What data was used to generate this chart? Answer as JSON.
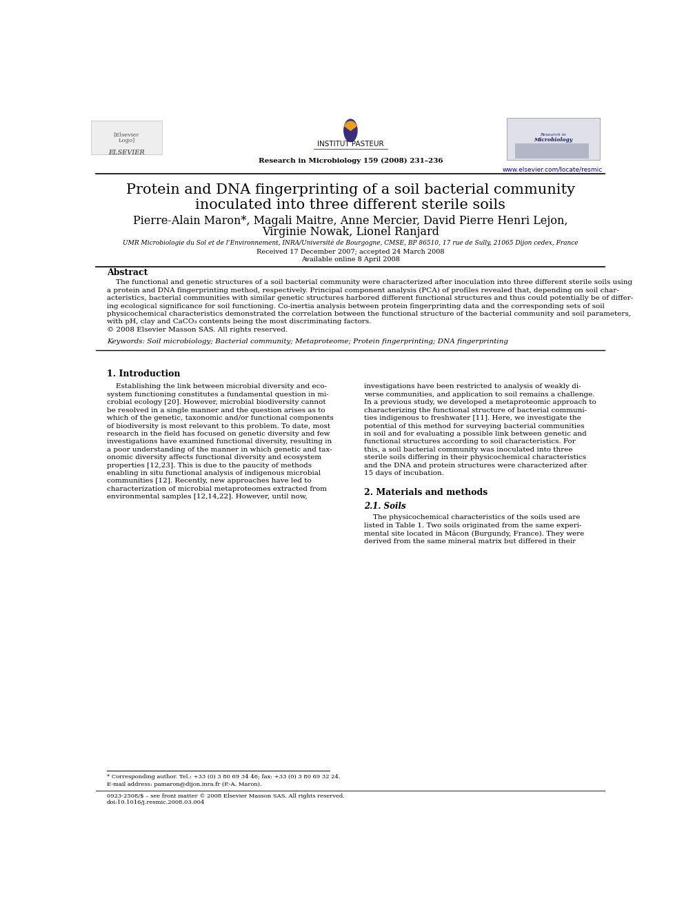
{
  "title_line1": "Protein and DNA fingerprinting of a soil bacterial community",
  "title_line2": "inoculated into three different sterile soils",
  "authors_line1": "Pierre-Alain Maron*, Magali Maitre, Anne Mercier, David Pierre Henri Lejon,",
  "authors_line2": "Virginie Nowak, Lionel Ranjard",
  "affiliation": "UMR Microbiologie du Sol et de l’Environnement, INRA/Université de Bourgogne, CMSE, BP 86510, 17 rue de Sully, 21065 Dijon cedex, France",
  "received": "Received 17 December 2007; accepted 24 March 2008",
  "available": "Available online 8 April 2008",
  "journal_line": "Research in Microbiology 159 (2008) 231–236",
  "journal_url": "www.elsevier.com/locate/resmic",
  "institut_pasteur": "INSTITUT PASTEUR",
  "elsevier": "ELSEVIER",
  "abstract_title": "Abstract",
  "keywords": "Keywords: Soil microbiology; Bacterial community; Metaproteome; Protein fingerprinting; DNA fingerprinting",
  "section1_title": "1. Introduction",
  "section2_title": "2. Materials and methods",
  "section2_sub": "2.1. Soils",
  "footnote_star": "* Corresponding author. Tel.: +33 (0) 3 80 69 34 46; fax: +33 (0) 3 80 69 32 24.",
  "footnote_email": "E-mail address: pamaron@dijon.inra.fr (P.-A. Maron).",
  "footer_issn": "0923-2508/$ – see front matter © 2008 Elsevier Masson SAS. All rights reserved.",
  "footer_doi": "doi:10.1016/j.resmic.2008.03.004",
  "bg_color": "#ffffff",
  "text_color": "#000000",
  "link_color": "#0000bb",
  "abstract_lines": [
    "    The functional and genetic structures of a soil bacterial community were characterized after inoculation into three different sterile soils using",
    "a protein and DNA fingerprinting method, respectively. Principal component analysis (PCA) of profiles revealed that, depending on soil char-",
    "acteristics, bacterial communities with similar genetic structures harbored different functional structures and thus could potentially be of differ-",
    "ing ecological significance for soil functioning. Co-inertia analysis between protein fingerprinting data and the corresponding sets of soil",
    "physicochemical characteristics demonstrated the correlation between the functional structure of the bacterial community and soil parameters,",
    "with pH, clay and CaCO₃ contents being the most discriminating factors.",
    "© 2008 Elsevier Masson SAS. All rights reserved."
  ],
  "left_col_lines": [
    "    Establishing the link between microbial diversity and eco-",
    "system functioning constitutes a fundamental question in mi-",
    "crobial ecology [20]. However, microbial biodiversity cannot",
    "be resolved in a single manner and the question arises as to",
    "which of the genetic, taxonomic and/or functional components",
    "of biodiversity is most relevant to this problem. To date, most",
    "research in the field has focused on genetic diversity and few",
    "investigations have examined functional diversity, resulting in",
    "a poor understanding of the manner in which genetic and tax-",
    "onomic diversity affects functional diversity and ecosystem",
    "properties [12,23]. This is due to the paucity of methods",
    "enabling in situ functional analysis of indigenous microbial",
    "communities [12]. Recently, new approaches have led to",
    "characterization of microbial metaproteomes extracted from",
    "environmental samples [12,14,22]. However, until now,"
  ],
  "right_col_lines": [
    "investigations have been restricted to analysis of weakly di-",
    "verse communities, and application to soil remains a challenge.",
    "In a previous study, we developed a metaproteomic approach to",
    "characterizing the functional structure of bacterial communi-",
    "ties indigenous to freshwater [11]. Here, we investigate the",
    "potential of this method for surveying bacterial communities",
    "in soil and for evaluating a possible link between genetic and",
    "functional structures according to soil characteristics. For",
    "this, a soil bacterial community was inoculated into three",
    "sterile soils differing in their physicochemical characteristics",
    "and the DNA and protein structures were characterized after",
    "15 days of incubation."
  ],
  "sec2_lines": [
    "    The physicochemical characteristics of the soils used are",
    "listed in Table 1. Two soils originated from the same experi-",
    "mental site located in Mâcon (Burgundy, France). They were",
    "derived from the same mineral matrix but differed in their"
  ]
}
